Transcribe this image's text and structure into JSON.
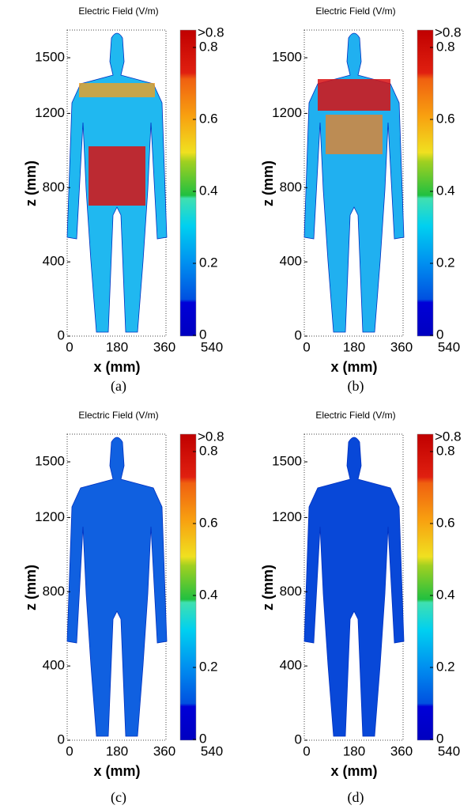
{
  "panels": [
    {
      "title": "Electric Field (V/m)",
      "x_label": "x (mm)",
      "z_label": "z (mm)",
      "x_ticks": [
        0,
        180,
        360,
        540
      ],
      "z_ticks": [
        0,
        400,
        800,
        1200,
        1500
      ],
      "colorbar": {
        "top_label": ">0.8",
        "ticks": [
          0,
          0.2,
          0.4,
          0.6,
          0.8
        ]
      },
      "caption": "(a)"
    },
    {
      "title": "Electric Field (V/m)",
      "x_label": "x (mm)",
      "z_label": "z (mm)",
      "x_ticks": [
        0,
        180,
        360,
        540
      ],
      "z_ticks": [
        0,
        400,
        800,
        1200,
        1500
      ],
      "colorbar": {
        "top_label": ">0.8",
        "ticks": [
          0,
          0.2,
          0.4,
          0.6,
          0.8
        ]
      },
      "caption": "(b)"
    },
    {
      "title": "Electric Field (V/m)",
      "x_label": "x (mm)",
      "z_label": "z (mm)",
      "x_ticks": [
        0,
        180,
        360,
        540
      ],
      "z_ticks": [
        0,
        400,
        800,
        1200,
        1500
      ],
      "colorbar": {
        "top_label": ">0.8",
        "ticks": [
          0,
          0.2,
          0.4,
          0.6,
          0.8
        ]
      },
      "caption": "(c)"
    },
    {
      "title": "Electric Field (V/m)",
      "x_label": "x (mm)",
      "z_label": "z (mm)",
      "x_ticks": [
        0,
        180,
        360,
        540
      ],
      "z_ticks": [
        0,
        400,
        800,
        1200,
        1500
      ],
      "colorbar": {
        "top_label": ">0.8",
        "ticks": [
          0,
          0.2,
          0.4,
          0.6,
          0.8
        ]
      },
      "caption": "(d)"
    }
  ]
}
